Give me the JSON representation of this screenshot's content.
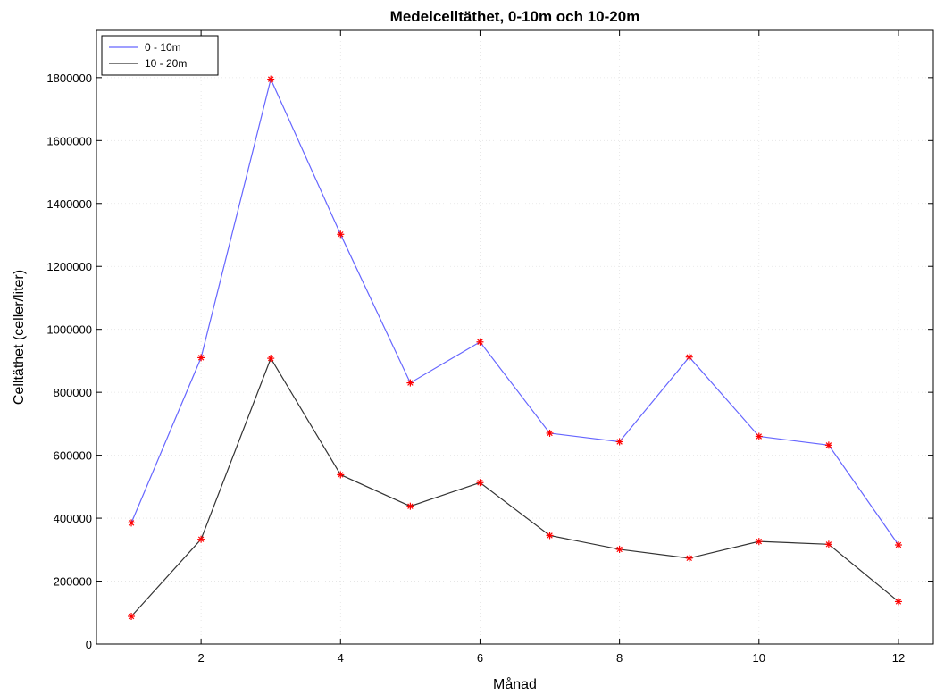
{
  "chart_data": {
    "type": "line",
    "title": "Medelcelltäthet, 0-10m och 10-20m",
    "xlabel": "Månad",
    "ylabel": "Celltäthet (celler/liter)",
    "xlim": [
      0.5,
      12.5
    ],
    "ylim": [
      0,
      1950000
    ],
    "xticks": [
      2,
      4,
      6,
      8,
      10,
      12
    ],
    "yticks": [
      0,
      200000,
      400000,
      600000,
      800000,
      1000000,
      1200000,
      1400000,
      1600000,
      1800000
    ],
    "grid": true,
    "legend_position": "top-left",
    "marker": "asterisk",
    "marker_color": "#ff0000",
    "x": [
      1,
      2,
      3,
      4,
      5,
      6,
      7,
      8,
      9,
      10,
      11,
      12
    ],
    "series": [
      {
        "name": "0 - 10m",
        "color": "#6666ff",
        "values": [
          385000,
          910000,
          1795000,
          1302000,
          830000,
          960000,
          670000,
          643000,
          912000,
          660000,
          632000,
          315000
        ]
      },
      {
        "name": "10 - 20m",
        "color": "#333333",
        "values": [
          88000,
          333000,
          908000,
          538000,
          438000,
          513000,
          345000,
          301000,
          273000,
          326000,
          317000,
          135000
        ]
      }
    ]
  }
}
